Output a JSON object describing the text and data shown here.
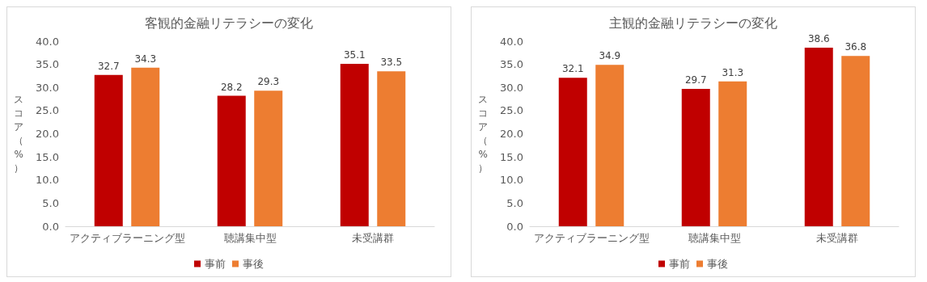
{
  "chart_data": [
    {
      "type": "bar",
      "title": "客観的金融リテラシーの変化",
      "ylabel": "スコア（%）",
      "categories": [
        "アクティブラーニング型",
        "聴講集中型",
        "未受講群"
      ],
      "series": [
        {
          "name": "事前",
          "color": "#c00000",
          "values": [
            32.7,
            28.2,
            35.1
          ]
        },
        {
          "name": "事後",
          "color": "#ed7d31",
          "values": [
            34.3,
            29.3,
            33.5
          ]
        }
      ],
      "ylim": [
        0,
        40
      ],
      "yticks": [
        {
          "value": 0,
          "label": "0.0"
        },
        {
          "value": 5,
          "label": "5.0"
        },
        {
          "value": 10,
          "label": "10.0"
        },
        {
          "value": 15,
          "label": "15.0"
        },
        {
          "value": 20,
          "label": "20.0"
        },
        {
          "value": 25,
          "label": "25.0"
        },
        {
          "value": 30,
          "label": "30.0"
        },
        {
          "value": 35,
          "label": "35.0"
        },
        {
          "value": 40,
          "label": "40.0"
        }
      ],
      "data_labels": true,
      "grid": false,
      "legend": "bottom"
    },
    {
      "type": "bar",
      "title": "主観的金融リテラシーの変化",
      "ylabel": "スコア（%）",
      "categories": [
        "アクティブラーニング型",
        "聴講集中型",
        "未受講群"
      ],
      "series": [
        {
          "name": "事前",
          "color": "#c00000",
          "values": [
            32.1,
            29.7,
            38.6
          ]
        },
        {
          "name": "事後",
          "color": "#ed7d31",
          "values": [
            34.9,
            31.3,
            36.8
          ]
        }
      ],
      "ylim": [
        0,
        40
      ],
      "yticks": [
        {
          "value": 0,
          "label": "0.0"
        },
        {
          "value": 5,
          "label": "5.0"
        },
        {
          "value": 10,
          "label": "10.0"
        },
        {
          "value": 15,
          "label": "15.0"
        },
        {
          "value": 20,
          "label": "20.0"
        },
        {
          "value": 25,
          "label": "25.0"
        },
        {
          "value": 30,
          "label": "30.0"
        },
        {
          "value": 35,
          "label": "35.0"
        },
        {
          "value": 40,
          "label": "40.0"
        }
      ],
      "data_labels": true,
      "grid": false,
      "legend": "bottom"
    }
  ]
}
